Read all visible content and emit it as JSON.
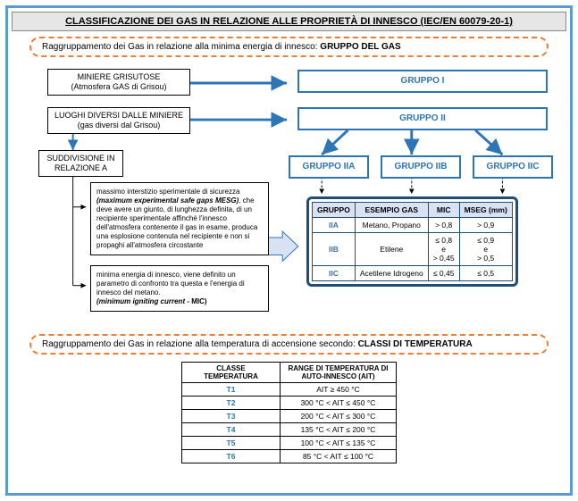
{
  "title": "CLASSIFICAZIONE DEI GAS IN RELAZIONE ALLE PROPRIETÀ DI INNESCO   (IEC/EN 60079-20-1)",
  "section1_pre": "Raggruppamento dei Gas in relazione alla minima energia di innesco: ",
  "section1_bold": "GRUPPO DEL GAS",
  "boxes": {
    "miniere_t": "MINIERE GRISUTOSE",
    "miniere_s": "(Atmosfera GAS di Grisou)",
    "luoghi_t": "LUOGHI DIVERSI DALLE MINIERE",
    "luoghi_s": "(gas diversi dal Grisou)",
    "sudd_t": "SUDDIVISIONE IN",
    "sudd_s": "RELAZIONE A",
    "g1": "GRUPPO I",
    "g2": "GRUPPO II",
    "g2a": "GRUPPO IIA",
    "g2b": "GRUPPO IIB",
    "g2c": "GRUPPO IIC"
  },
  "desc1": "massimo interstizio sperimentale di sicurezza <b><i>(maximum experimental safe gaps MESG)</i></b>, che deve avere un giunto, di lunghezza definita, di un recipiente sperimentale affinché l'innesco dell'atmosfera contenente il gas in esame, produca una esplosione contenuta nel recipiente e non si propaghi all'atmosfera circostante",
  "desc2": "minima energia di innesco, viene definito un parametro di confronto tra questa e l'energia di innesco del metano.<br><b><i>(minimum igniting current</i> - MIC)</b>",
  "gas_table": {
    "headers": [
      "GRUPPO",
      "ESEMPIO GAS",
      "MIC",
      "MSEG (mm)"
    ],
    "rows": [
      {
        "g": "IIA",
        "ex": "Metano, Propano",
        "mic": "> 0,8",
        "mseg": "> 0,9"
      },
      {
        "g": "IIB",
        "ex": "Etilene",
        "mic": "≤ 0,8<br>e<br>> 0,45",
        "mseg": "≤ 0,9<br>e<br>> 0,5"
      },
      {
        "g": "IIC",
        "ex": "Acetilene Idrogeno",
        "mic": "≤ 0,45",
        "mseg": "≤ 0,5"
      }
    ]
  },
  "section2_pre": "Raggruppamento dei Gas in relazione alla temperatura di accensione secondo: ",
  "section2_bold": "CLASSI DI TEMPERATURA",
  "temp_table": {
    "h1": "CLASSE TEMPERATURA",
    "h2": "RANGE DI TEMPERATURA DI AUTO-INNESCO (AIT)",
    "rows": [
      {
        "c": "T1",
        "r": "AIT ≥ 450 °C"
      },
      {
        "c": "T2",
        "r": "300 °C < AIT ≤ 450 °C"
      },
      {
        "c": "T3",
        "r": "200 °C < AIT ≤ 300 °C"
      },
      {
        "c": "T4",
        "r": "135 °C < AIT ≤ 200 °C"
      },
      {
        "c": "T5",
        "r": "100 °C < AIT ≤ 135 °C"
      },
      {
        "c": "T6",
        "r": "85 °C < AIT ≤ 100 °C"
      }
    ]
  },
  "colors": {
    "frame": "#5b9bd5",
    "accent": "#2e75b6",
    "orange": "#ed7d31",
    "tbl_border": "#1f4e79",
    "tbl_head": "#d9e2f3"
  }
}
